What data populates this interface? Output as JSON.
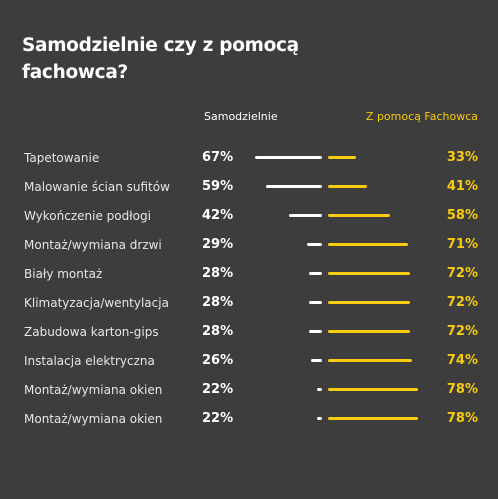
{
  "title": "Samodzielnie czy z pomocą fachowca?",
  "colors": {
    "background": "#3d3d3d",
    "left_series": "#ffffff",
    "right_series": "#f7cc0d"
  },
  "chart_data": {
    "type": "bar",
    "title": "Samodzielnie czy z pomocą fachowca?",
    "orientation": "horizontal-diverging",
    "categories": [
      "Tapetowanie",
      "Malowanie ścian sufitów",
      "Wykończenie podłogi",
      "Montaż/wymiana drzwi",
      "Biały montaż",
      "Klimatyzacja/wentylacja",
      "Zabudowa karton-gips",
      "Instalacja elektryczna",
      "Montaż/wymiana okien",
      "Montaż/wymiana okien"
    ],
    "series": [
      {
        "name": "Samodzielnie",
        "values": [
          67,
          59,
          42,
          29,
          28,
          28,
          28,
          26,
          22,
          22
        ],
        "labels": [
          "67%",
          "59%",
          "42%",
          "29%",
          "28%",
          "28%",
          "28%",
          "26%",
          "22%",
          "22%"
        ]
      },
      {
        "name": "Z pomocą Fachowca",
        "values": [
          33,
          41,
          58,
          71,
          72,
          72,
          72,
          74,
          78,
          78
        ],
        "labels": [
          "33%",
          "41%",
          "58%",
          "71%",
          "72%",
          "72%",
          "72%",
          "74%",
          "78%",
          "78%"
        ]
      }
    ],
    "unit": "%"
  }
}
